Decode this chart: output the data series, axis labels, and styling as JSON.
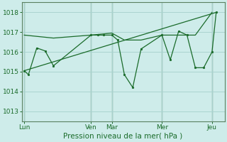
{
  "background_color": "#ceecea",
  "grid_color": "#aad4d0",
  "line_color": "#1a6b2a",
  "marker_color": "#1a6b2a",
  "xlabel": "Pression niveau de la mer( hPa )",
  "ylim": [
    1012.5,
    1018.5
  ],
  "yticks": [
    1013,
    1014,
    1015,
    1016,
    1017,
    1018
  ],
  "xlabel_fontsize": 7.5,
  "tick_fontsize": 6.5,
  "x_day_labels": [
    "Lun",
    "Ven",
    "Mar",
    "Mer",
    "Jeu"
  ],
  "x_day_positions": [
    0.0,
    8.0,
    10.5,
    16.5,
    22.5
  ],
  "xlim": [
    -0.3,
    24.0
  ],
  "series1_x": [
    0.0,
    0.5,
    1.5,
    2.5,
    3.5,
    8.0,
    8.8,
    9.5,
    10.5,
    11.2,
    12.0,
    13.0,
    14.0,
    16.5,
    17.5,
    18.5,
    19.5,
    20.5,
    21.5,
    22.5,
    23.0
  ],
  "series1_y": [
    1015.05,
    1014.85,
    1016.2,
    1016.05,
    1015.3,
    1016.85,
    1016.85,
    1016.85,
    1016.85,
    1016.6,
    1014.85,
    1014.2,
    1016.15,
    1016.85,
    1015.6,
    1017.05,
    1016.85,
    1015.2,
    1015.2,
    1016.0,
    1018.0
  ],
  "series2_x": [
    0.0,
    3.5,
    8.0,
    10.5,
    12.0,
    14.0,
    16.5,
    18.5,
    20.5,
    22.5
  ],
  "series2_y": [
    1016.85,
    1016.7,
    1016.85,
    1016.95,
    1016.6,
    1016.6,
    1016.85,
    1016.85,
    1016.85,
    1018.0
  ],
  "trend_x": [
    0.0,
    23.0
  ],
  "trend_y": [
    1015.05,
    1018.0
  ],
  "vline_color": "#5a8060",
  "vline_positions": [
    0.0,
    8.0,
    10.5,
    16.5,
    22.5
  ],
  "spine_color": "#5a8060"
}
